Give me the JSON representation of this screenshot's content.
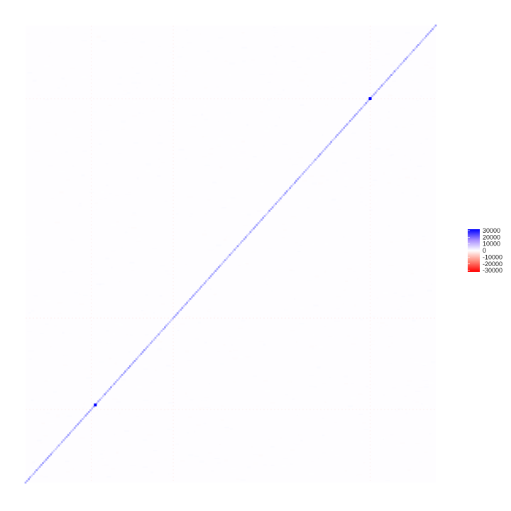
{
  "chart_data": {
    "type": "heatmap",
    "title": "",
    "xlabel": "",
    "ylabel": "",
    "matrix": {
      "shape": "square",
      "diagonal": "upper-left to lower-right is not used; diagonal runs from bottom-left to top-right",
      "diagonal_values_typical": 8000,
      "diagonal_values_peak": 32000,
      "off_diagonal_values_typical": 0,
      "peak_positions_along_diagonal": [
        0.17,
        0.84
      ],
      "faint_cross_lines": [
        0.16,
        0.36,
        0.84
      ]
    },
    "colorscale": {
      "low_color": "#ff0000",
      "mid_color": "#ffffff",
      "high_color": "#0000ff",
      "min": -32000,
      "max": 32000
    },
    "legend": {
      "position": "right",
      "ticks": [
        "30000",
        "20000",
        "10000",
        "0",
        "-10000",
        "-20000",
        "-30000"
      ],
      "tick_values": [
        30000,
        20000,
        10000,
        0,
        -10000,
        -20000,
        -30000
      ]
    }
  }
}
